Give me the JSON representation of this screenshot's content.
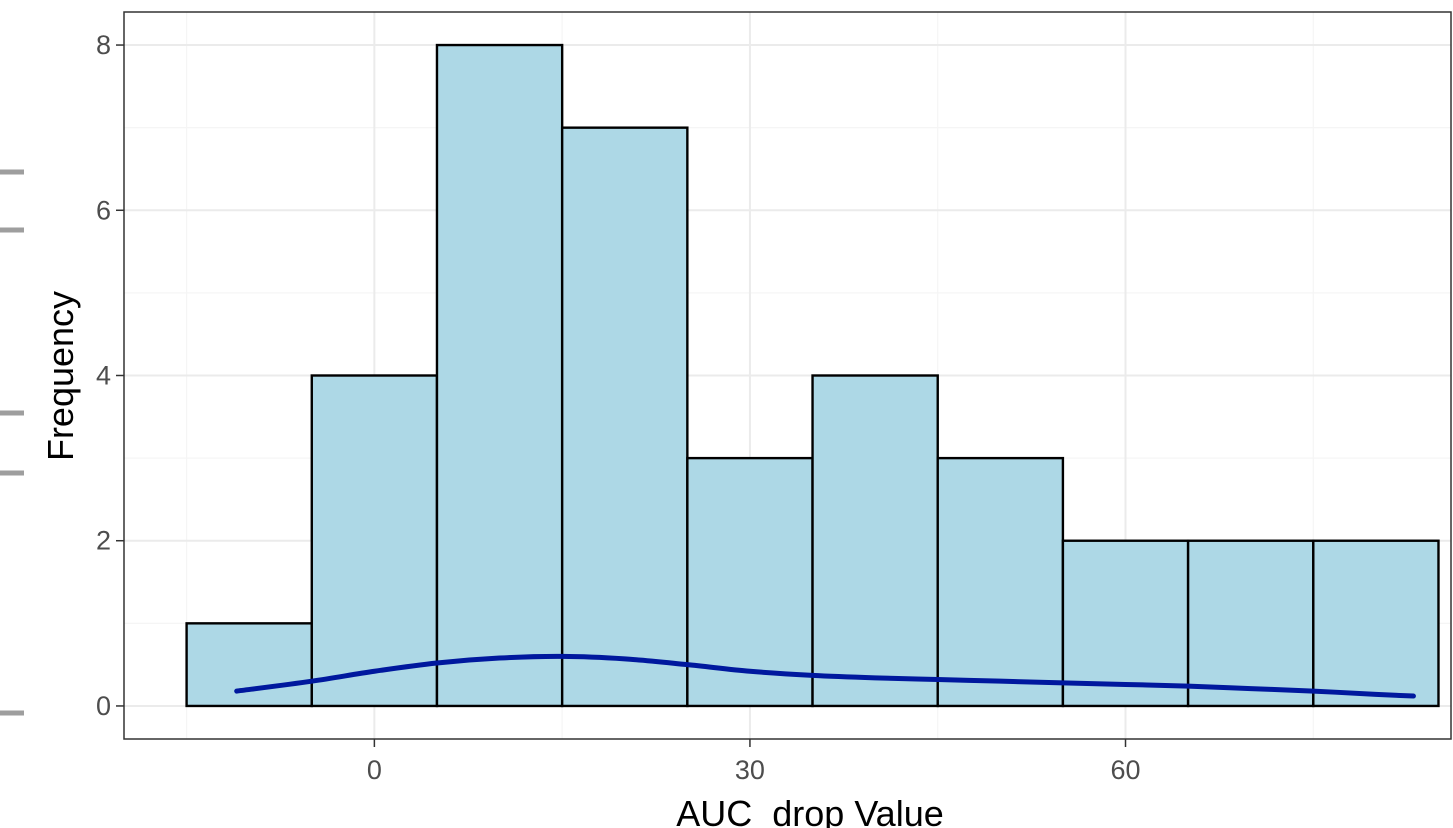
{
  "chart_data": {
    "type": "bar",
    "subtype": "histogram-with-density",
    "xlabel": "AUC_drop Value",
    "ylabel": "Frequency",
    "bins": [
      {
        "x0": -15,
        "x1": -5,
        "count": 1
      },
      {
        "x0": -5,
        "x1": 5,
        "count": 4
      },
      {
        "x0": 5,
        "x1": 15,
        "count": 8
      },
      {
        "x0": 15,
        "x1": 25,
        "count": 7
      },
      {
        "x0": 25,
        "x1": 35,
        "count": 3
      },
      {
        "x0": 35,
        "x1": 45,
        "count": 4
      },
      {
        "x0": 45,
        "x1": 55,
        "count": 3
      },
      {
        "x0": 55,
        "x1": 65,
        "count": 2
      },
      {
        "x0": 65,
        "x1": 75,
        "count": 2
      },
      {
        "x0": 75,
        "x1": 85,
        "count": 2
      }
    ],
    "density_curve": {
      "x": [
        -11,
        -5,
        0,
        5,
        10,
        15,
        20,
        25,
        30,
        35,
        40,
        45,
        50,
        55,
        60,
        65,
        70,
        75,
        80,
        83
      ],
      "y": [
        0.18,
        0.3,
        0.42,
        0.52,
        0.58,
        0.6,
        0.57,
        0.5,
        0.42,
        0.37,
        0.34,
        0.32,
        0.3,
        0.28,
        0.26,
        0.24,
        0.21,
        0.18,
        0.14,
        0.12
      ]
    },
    "xlim": [
      -20,
      86
    ],
    "ylim": [
      -0.4,
      8.4
    ],
    "x_ticks": [
      0,
      30,
      60
    ],
    "y_ticks": [
      0,
      2,
      4,
      6,
      8
    ],
    "grid": true,
    "colors": {
      "bar_fill": "#add8e6",
      "bar_outline": "#000000",
      "density_line": "#00189e",
      "grid": "#ebebeb"
    }
  }
}
